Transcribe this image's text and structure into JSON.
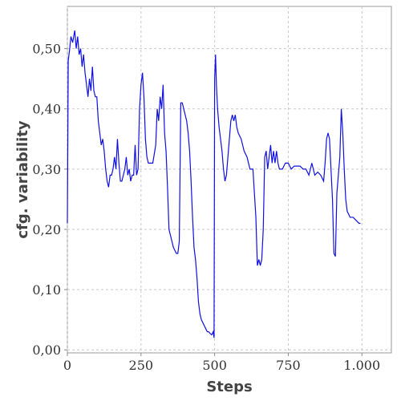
{
  "chart_data": {
    "type": "line",
    "x_label": "Steps",
    "y_label": "cfg. variability",
    "xlim": [
      0,
      1100
    ],
    "ylim": [
      -0.005,
      0.57
    ],
    "xticks": [
      0,
      250,
      500,
      750,
      {
        "value": 1000,
        "label": "1.000"
      }
    ],
    "yticks": [
      {
        "value": 0,
        "label": "0,00"
      },
      {
        "value": 0.1,
        "label": "0,10"
      },
      {
        "value": 0.2,
        "label": "0,20"
      },
      {
        "value": 0.3,
        "label": "0,30"
      },
      {
        "value": 0.4,
        "label": "0,40"
      },
      {
        "value": 0.5,
        "label": "0,50"
      }
    ],
    "grid": true,
    "x": [
      0,
      3,
      8,
      12,
      18,
      25,
      30,
      35,
      40,
      45,
      50,
      55,
      60,
      65,
      70,
      75,
      80,
      85,
      90,
      95,
      100,
      105,
      110,
      115,
      120,
      125,
      130,
      135,
      140,
      145,
      150,
      155,
      160,
      165,
      170,
      175,
      180,
      185,
      190,
      195,
      200,
      205,
      210,
      215,
      220,
      225,
      230,
      235,
      240,
      245,
      250,
      255,
      260,
      265,
      270,
      275,
      280,
      290,
      300,
      305,
      310,
      315,
      320,
      325,
      330,
      335,
      340,
      345,
      350,
      355,
      360,
      365,
      370,
      375,
      380,
      385,
      390,
      395,
      400,
      405,
      410,
      415,
      420,
      425,
      430,
      435,
      440,
      445,
      450,
      455,
      460,
      465,
      470,
      475,
      480,
      485,
      490,
      495,
      498,
      500,
      503,
      506,
      510,
      515,
      520,
      525,
      530,
      535,
      540,
      545,
      550,
      555,
      560,
      565,
      570,
      575,
      580,
      590,
      600,
      610,
      620,
      630,
      640,
      645,
      650,
      655,
      660,
      665,
      670,
      675,
      680,
      685,
      690,
      695,
      700,
      705,
      710,
      715,
      720,
      730,
      740,
      750,
      760,
      770,
      780,
      790,
      800,
      810,
      820,
      830,
      840,
      850,
      860,
      870,
      875,
      880,
      885,
      890,
      895,
      900,
      905,
      910,
      915,
      920,
      925,
      930,
      935,
      940,
      945,
      950,
      955,
      960,
      970,
      980,
      990,
      995
    ],
    "series": [
      {
        "name": "cfg. variability",
        "color": "#1010e0",
        "values": [
          0.21,
          0.48,
          0.5,
          0.52,
          0.51,
          0.53,
          0.5,
          0.52,
          0.49,
          0.5,
          0.47,
          0.49,
          0.46,
          0.44,
          0.42,
          0.45,
          0.43,
          0.47,
          0.43,
          0.42,
          0.42,
          0.38,
          0.36,
          0.34,
          0.35,
          0.33,
          0.3,
          0.28,
          0.27,
          0.29,
          0.29,
          0.3,
          0.32,
          0.3,
          0.35,
          0.31,
          0.28,
          0.28,
          0.29,
          0.3,
          0.32,
          0.29,
          0.3,
          0.28,
          0.29,
          0.29,
          0.34,
          0.29,
          0.3,
          0.4,
          0.44,
          0.46,
          0.42,
          0.35,
          0.32,
          0.31,
          0.31,
          0.31,
          0.34,
          0.4,
          0.38,
          0.42,
          0.4,
          0.44,
          0.36,
          0.33,
          0.27,
          0.2,
          0.19,
          0.18,
          0.17,
          0.165,
          0.16,
          0.16,
          0.18,
          0.41,
          0.41,
          0.4,
          0.39,
          0.38,
          0.36,
          0.33,
          0.28,
          0.22,
          0.17,
          0.15,
          0.12,
          0.08,
          0.06,
          0.05,
          0.045,
          0.04,
          0.035,
          0.03,
          0.03,
          0.027,
          0.025,
          0.03,
          0.02,
          0.45,
          0.49,
          0.44,
          0.4,
          0.37,
          0.35,
          0.33,
          0.3,
          0.28,
          0.29,
          0.32,
          0.35,
          0.38,
          0.39,
          0.38,
          0.39,
          0.37,
          0.36,
          0.35,
          0.33,
          0.32,
          0.3,
          0.3,
          0.22,
          0.14,
          0.15,
          0.14,
          0.15,
          0.2,
          0.32,
          0.33,
          0.3,
          0.32,
          0.34,
          0.31,
          0.33,
          0.31,
          0.33,
          0.31,
          0.3,
          0.3,
          0.31,
          0.31,
          0.3,
          0.305,
          0.305,
          0.305,
          0.3,
          0.3,
          0.29,
          0.31,
          0.29,
          0.295,
          0.29,
          0.28,
          0.31,
          0.35,
          0.36,
          0.35,
          0.3,
          0.25,
          0.16,
          0.155,
          0.26,
          0.29,
          0.32,
          0.4,
          0.36,
          0.3,
          0.25,
          0.23,
          0.225,
          0.22,
          0.22,
          0.215,
          0.21,
          0.21
        ]
      }
    ]
  }
}
